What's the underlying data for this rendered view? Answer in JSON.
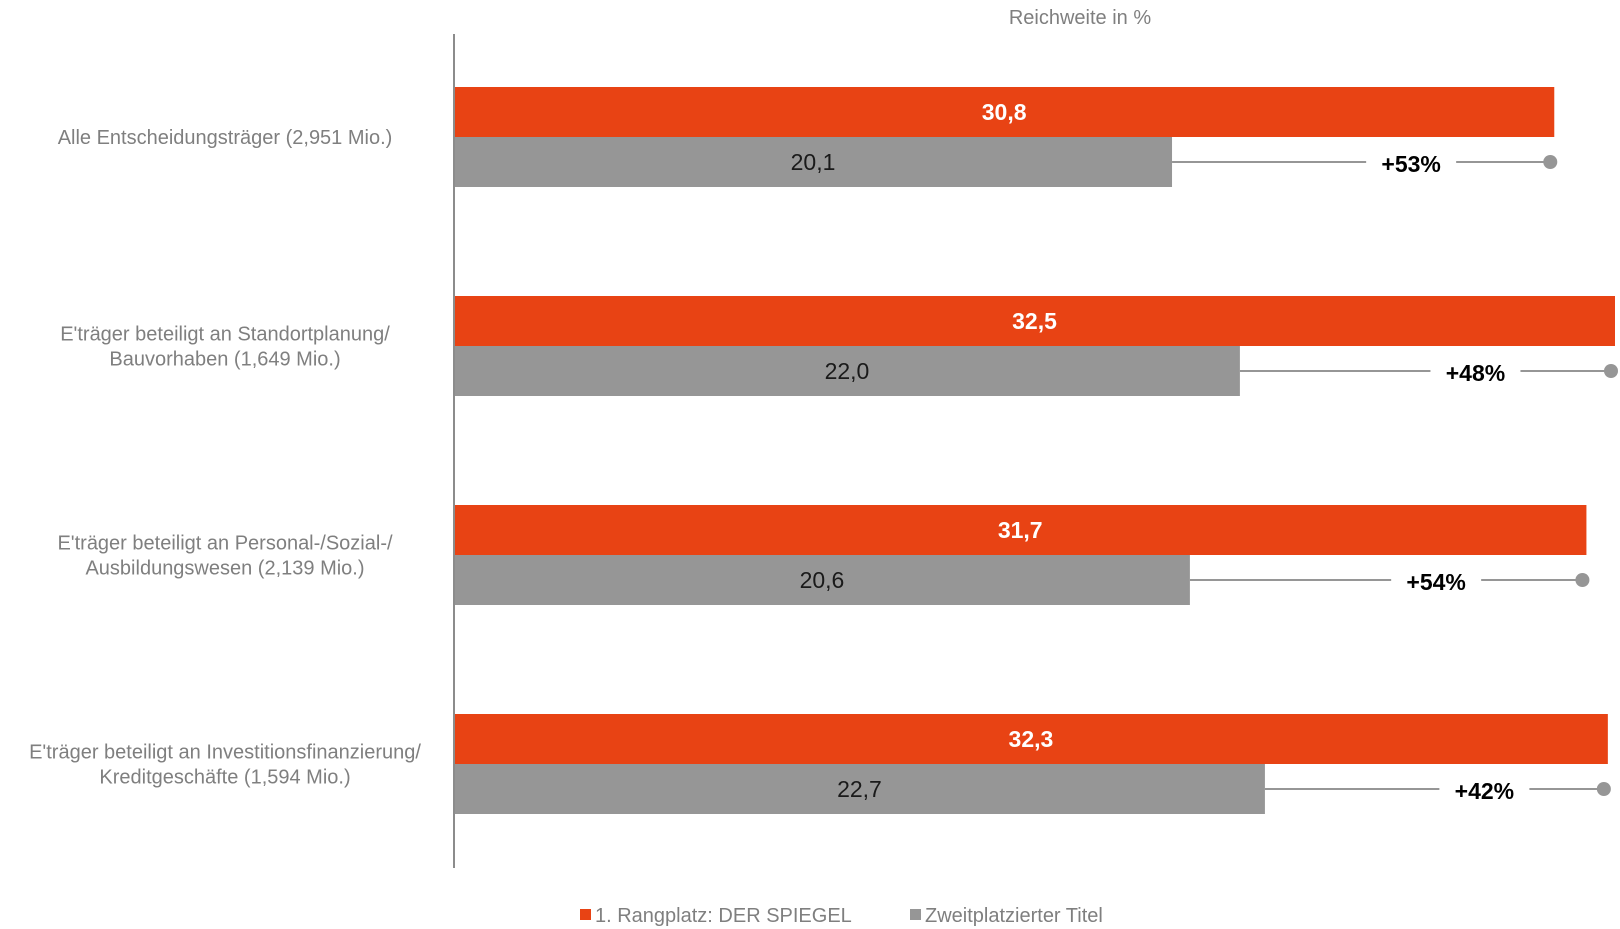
{
  "chart_data": {
    "type": "bar",
    "orientation": "horizontal",
    "axis_title": "Reichweite in %",
    "categories": [
      [
        "Alle Entscheidungsträger (2,951 Mio.)"
      ],
      [
        "E'träger beteiligt an Standortplanung/",
        "Bauvorhaben (1,649 Mio.)"
      ],
      [
        "E'träger beteiligt an Personal-/Sozial-/",
        "Ausbildungswesen (2,139 Mio.)"
      ],
      [
        "E'träger beteiligt an Investitionsfinanzierung/",
        "Kreditgeschäfte (1,594 Mio.)"
      ]
    ],
    "series": [
      {
        "name": "1. Rangplatz: DER SPIEGEL",
        "color": "#e84314",
        "values": [
          30.8,
          32.5,
          31.7,
          32.3
        ],
        "labels": [
          "30,8",
          "32,5",
          "31,7",
          "32,3"
        ]
      },
      {
        "name": "Zweitplatzierter Titel",
        "color": "#969696",
        "values": [
          20.1,
          22.0,
          20.6,
          22.7
        ],
        "labels": [
          "20,1",
          "22,0",
          "20,6",
          "22,7"
        ]
      }
    ],
    "differences": [
      "+53%",
      "+48%",
      "+54%",
      "+42%"
    ],
    "xlim": [
      0,
      32.5
    ],
    "grid": false,
    "legend_position": "bottom"
  }
}
